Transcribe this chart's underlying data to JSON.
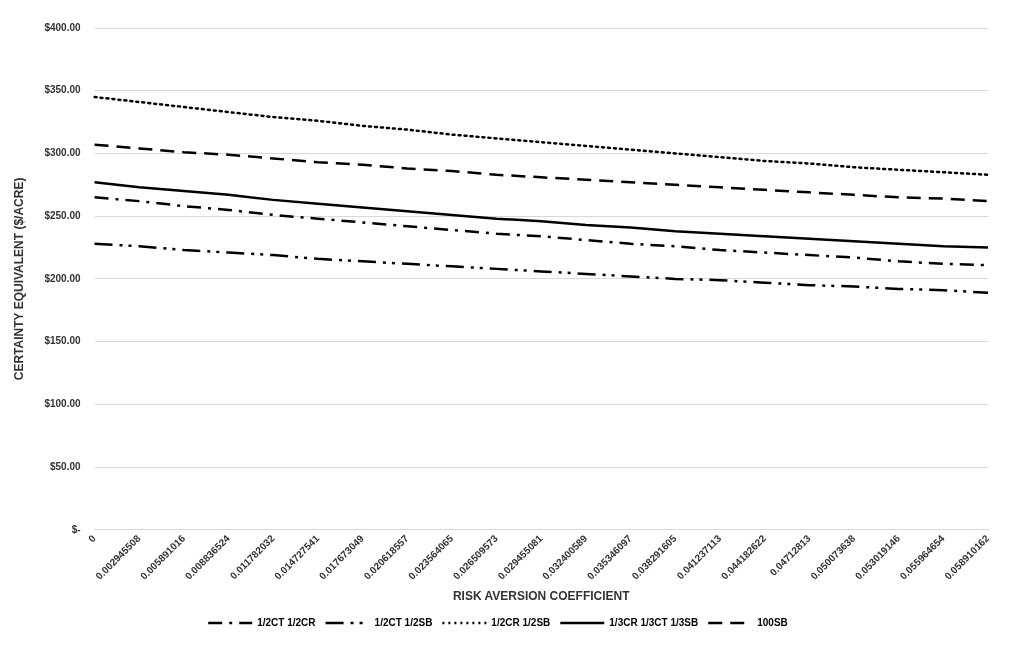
{
  "chart_data": {
    "type": "line",
    "xlabel": "RISK AVERSION COEFFICIENT",
    "ylabel": "CERTAINTY EQUIVALENT ($/ACRE)",
    "categories": [
      "0",
      "0.002945508",
      "0.005891016",
      "0.008836524",
      "0.011782032",
      "0.014727541",
      "0.017673049",
      "0.020618557",
      "0.023564065",
      "0.026509573",
      "0.029455081",
      "0.032400589",
      "0.035346097",
      "0.038291605",
      "0.041237113",
      "0.044182622",
      "0.04712813",
      "0.050073638",
      "0.053019146",
      "0.055964654",
      "0.058910162"
    ],
    "series": [
      {
        "name": "1/2CT 1/2CR",
        "color": "#000000",
        "line_style": "dashdot",
        "values": [
          265,
          262,
          258,
          255,
          251,
          248,
          245,
          242,
          239,
          236,
          234,
          231,
          228,
          226,
          223,
          221,
          219,
          217,
          214,
          212,
          211
        ]
      },
      {
        "name": "1/2CT 1/2SB",
        "color": "#000000",
        "line_style": "dashdotdot",
        "values": [
          228,
          226,
          223,
          221,
          219,
          216,
          214,
          212,
          210,
          208,
          206,
          204,
          202,
          200,
          199,
          197,
          195,
          194,
          192,
          191,
          189
        ]
      },
      {
        "name": "1/2CR 1/2SB",
        "color": "#000000",
        "line_style": "dotted",
        "values": [
          345,
          341,
          337,
          333,
          329,
          326,
          322,
          319,
          315,
          312,
          309,
          306,
          303,
          300,
          297,
          294,
          292,
          289,
          287,
          285,
          283
        ]
      },
      {
        "name": "1/3CR 1/3CT 1/3SB",
        "color": "#000000",
        "line_style": "solid",
        "values": [
          277,
          273,
          270,
          267,
          263,
          260,
          257,
          254,
          251,
          248,
          246,
          243,
          241,
          238,
          236,
          234,
          232,
          230,
          228,
          226,
          225
        ]
      },
      {
        "name": "100SB",
        "color": "#000000",
        "line_style": "dashed",
        "values": [
          307,
          304,
          301,
          299,
          296,
          293,
          291,
          288,
          286,
          283,
          281,
          279,
          277,
          275,
          273,
          271,
          269,
          267,
          265,
          264,
          262
        ]
      }
    ],
    "ylim": [
      0,
      400
    ],
    "yticks": [
      {
        "value": 0,
        "label": "$-"
      },
      {
        "value": 50,
        "label": "$50.00"
      },
      {
        "value": 100,
        "label": "$100.00"
      },
      {
        "value": 150,
        "label": "$150.00"
      },
      {
        "value": 200,
        "label": "$200.00"
      },
      {
        "value": 250,
        "label": "$250.00"
      },
      {
        "value": 300,
        "label": "$300.00"
      },
      {
        "value": 350,
        "label": "$350.00"
      },
      {
        "value": 400,
        "label": "$400.00"
      }
    ],
    "grid": "y",
    "legend": "bottom",
    "marker": "none"
  }
}
